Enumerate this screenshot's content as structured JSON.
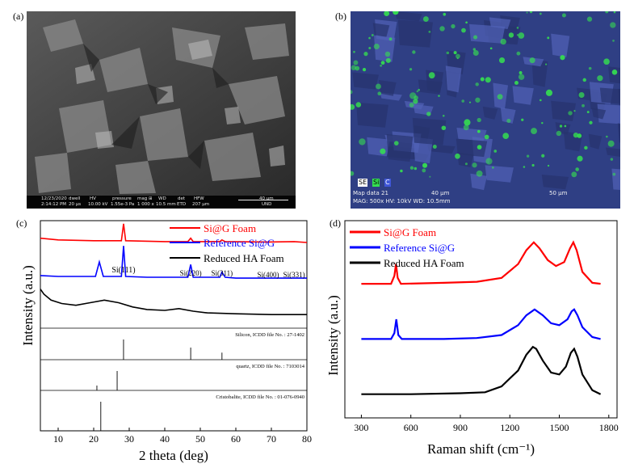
{
  "panel_labels": {
    "a": "(a)",
    "b": "(b)",
    "c": "(c)",
    "d": "(d)"
  },
  "sem_a": {
    "date": "12/23/2020",
    "time": "2:14:12 PM",
    "dwell_label": "dwell",
    "dwell": "20 µs",
    "hv_label": "HV",
    "hv": "10.00 kV",
    "pressure_label": "pressure",
    "pressure": "1.55e-3 Pa",
    "mag_label": "mag ⊞",
    "mag": "1 000 x",
    "wd_label": "WD",
    "wd": "10.5 mm",
    "det_label": "det",
    "det": "ETD",
    "hfw_label": "HFW",
    "hfw": "207 µm",
    "scalebar": "40 µm",
    "org": "UND"
  },
  "sem_b": {
    "legend": {
      "se": "SE",
      "si": "Si",
      "c": "C"
    },
    "colors": {
      "si": "#35e050",
      "c": "#3f56d8"
    },
    "map_data": "Map data 21",
    "scale_mid": "40 µm",
    "scale_right": "50 µm",
    "params": "MAG: 500x HV: 10kV WD: 10.5mm"
  },
  "chart_data": [
    {
      "type": "line",
      "panel": "(c)",
      "xlabel": "2 theta (deg)",
      "ylabel": "Intensity (a.u.)",
      "xlim": [
        5,
        80
      ],
      "xticks": [
        10,
        20,
        30,
        40,
        50,
        60,
        70,
        80
      ],
      "colors": [
        "#ff0000",
        "#0000ff",
        "#000000"
      ],
      "series": [
        {
          "name": "Si@G Foam",
          "x": [
            5,
            10,
            20,
            26,
            27.8,
            28.4,
            29,
            40,
            46.5,
            47.3,
            48,
            55.5,
            56.1,
            57,
            69,
            76.4,
            80
          ],
          "y": [
            1.06,
            1.04,
            1.03,
            1.03,
            1.03,
            1.23,
            1.03,
            1.02,
            1.02,
            1.06,
            1.02,
            1.02,
            1.04,
            1.02,
            1.015,
            1.02,
            1.01
          ]
        },
        {
          "name": "Reference Si@G",
          "x": [
            5,
            10,
            20.5,
            21.6,
            22.7,
            26,
            27.8,
            28.4,
            29,
            35,
            46.5,
            47.3,
            48,
            55.5,
            56.1,
            57,
            60,
            80
          ],
          "y": [
            0.62,
            0.61,
            0.61,
            0.78,
            0.61,
            0.61,
            0.61,
            0.97,
            0.61,
            0.6,
            0.6,
            0.75,
            0.6,
            0.6,
            0.66,
            0.6,
            0.59,
            0.59
          ]
        },
        {
          "name": "Reduced HA Foam",
          "x": [
            5,
            6,
            8,
            11,
            15,
            19,
            23,
            27,
            31,
            35,
            40,
            44,
            48,
            52,
            60,
            70,
            80
          ],
          "y": [
            0.46,
            0.4,
            0.33,
            0.29,
            0.27,
            0.3,
            0.33,
            0.3,
            0.25,
            0.22,
            0.21,
            0.23,
            0.2,
            0.18,
            0.17,
            0.16,
            0.16
          ]
        }
      ],
      "peak_labels": [
        {
          "text": "Si(111)",
          "x": 28.4
        },
        {
          "text": "Si(220)",
          "x": 47.3
        },
        {
          "text": "Si(311)",
          "x": 56.1
        },
        {
          "text": "Si(400)",
          "x": 69.1
        },
        {
          "text": "Si(331)",
          "x": 76.4
        }
      ],
      "reference_patterns": [
        {
          "label": "Silicon, ICDD file No. : 27-1402",
          "peaks": [
            [
              28.4,
              1.0
            ],
            [
              47.3,
              0.6
            ],
            [
              56.1,
              0.35
            ]
          ]
        },
        {
          "label": "quartz, ICDD file No. : 7103014",
          "peaks": [
            [
              20.9,
              0.25
            ],
            [
              26.6,
              1.0
            ]
          ]
        },
        {
          "label": "Cristobalite, ICDD file No. : 01-076-0940",
          "peaks": [
            [
              22.0,
              1.0
            ]
          ]
        }
      ],
      "legend_position": "top-right"
    },
    {
      "type": "line",
      "panel": "(d)",
      "xlabel": "Raman shift (cm⁻¹)",
      "ylabel": "Intensity (a.u.)",
      "xlim": [
        200,
        1850
      ],
      "xticks": [
        300,
        600,
        900,
        1200,
        1500,
        1800
      ],
      "colors": [
        "#ff0000",
        "#0000ff",
        "#000000"
      ],
      "series": [
        {
          "name": "Si@G Foam",
          "x": [
            300,
            480,
            500,
            510,
            520,
            540,
            800,
            1000,
            1150,
            1250,
            1300,
            1345,
            1380,
            1430,
            1480,
            1530,
            1565,
            1585,
            1605,
            1640,
            1700,
            1750
          ],
          "y": [
            0.68,
            0.68,
            0.72,
            0.78,
            0.71,
            0.68,
            0.685,
            0.69,
            0.71,
            0.78,
            0.85,
            0.89,
            0.86,
            0.8,
            0.77,
            0.79,
            0.86,
            0.89,
            0.85,
            0.74,
            0.685,
            0.68
          ]
        },
        {
          "name": "Reference Si@G",
          "x": [
            300,
            480,
            500,
            512,
            524,
            545,
            800,
            1000,
            1150,
            1250,
            1300,
            1350,
            1400,
            1450,
            1500,
            1550,
            1575,
            1590,
            1610,
            1640,
            1700,
            1750
          ],
          "y": [
            0.4,
            0.4,
            0.43,
            0.5,
            0.42,
            0.4,
            0.4,
            0.405,
            0.42,
            0.47,
            0.52,
            0.55,
            0.52,
            0.48,
            0.47,
            0.5,
            0.54,
            0.55,
            0.52,
            0.46,
            0.41,
            0.4
          ]
        },
        {
          "name": "Reduced HA Foam",
          "x": [
            300,
            600,
            900,
            1050,
            1150,
            1250,
            1300,
            1340,
            1360,
            1400,
            1450,
            1500,
            1540,
            1570,
            1590,
            1610,
            1640,
            1700,
            1750
          ],
          "y": [
            0.12,
            0.12,
            0.125,
            0.13,
            0.16,
            0.24,
            0.32,
            0.36,
            0.35,
            0.29,
            0.23,
            0.22,
            0.26,
            0.33,
            0.35,
            0.31,
            0.22,
            0.14,
            0.12
          ]
        }
      ],
      "legend_position": "top-left"
    }
  ]
}
